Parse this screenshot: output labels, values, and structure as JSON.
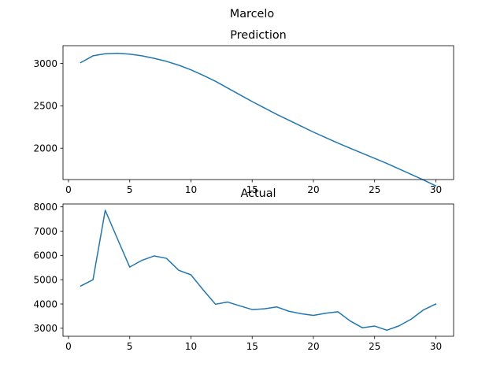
{
  "figure": {
    "suptitle": "Marcelo"
  },
  "colors": {
    "series": "#1f77b4",
    "axes": "#000000",
    "background": "#ffffff"
  },
  "chart_data": [
    {
      "type": "line",
      "title": "Prediction",
      "xlabel": "",
      "ylabel": "",
      "grid": false,
      "xlim": [
        -0.45,
        31.45
      ],
      "ylim": [
        1630,
        3210
      ],
      "xticks": [
        0,
        5,
        10,
        15,
        20,
        25,
        30
      ],
      "yticks": [
        2000,
        2500,
        3000
      ],
      "series": [
        {
          "x": [
            1,
            2,
            3,
            4,
            5,
            6,
            7,
            8,
            9,
            10,
            11,
            12,
            13,
            14,
            15,
            16,
            17,
            18,
            19,
            20,
            21,
            22,
            23,
            24,
            25,
            26,
            27,
            28,
            29,
            30
          ],
          "values": [
            3010,
            3090,
            3115,
            3120,
            3110,
            3090,
            3060,
            3025,
            2980,
            2925,
            2860,
            2790,
            2710,
            2630,
            2550,
            2475,
            2400,
            2330,
            2260,
            2190,
            2125,
            2060,
            2000,
            1940,
            1880,
            1820,
            1755,
            1690,
            1625,
            1555
          ]
        }
      ]
    },
    {
      "type": "line",
      "title": "Actual",
      "xlabel": "",
      "ylabel": "",
      "grid": false,
      "xlim": [
        -0.45,
        31.45
      ],
      "ylim": [
        2670,
        8120
      ],
      "xticks": [
        0,
        5,
        10,
        15,
        20,
        25,
        30
      ],
      "yticks": [
        3000,
        4000,
        5000,
        6000,
        7000,
        8000
      ],
      "series": [
        {
          "x": [
            1,
            2,
            3,
            4,
            5,
            6,
            7,
            8,
            9,
            10,
            11,
            12,
            13,
            14,
            15,
            16,
            17,
            18,
            19,
            20,
            21,
            22,
            23,
            24,
            25,
            26,
            27,
            28,
            29,
            30
          ],
          "values": [
            4740,
            5000,
            7860,
            6680,
            5520,
            5800,
            5980,
            5880,
            5390,
            5200,
            4580,
            3990,
            4080,
            3920,
            3770,
            3800,
            3880,
            3700,
            3600,
            3530,
            3620,
            3680,
            3300,
            3020,
            3090,
            2920,
            3100,
            3380,
            3760,
            4000
          ]
        }
      ]
    }
  ]
}
